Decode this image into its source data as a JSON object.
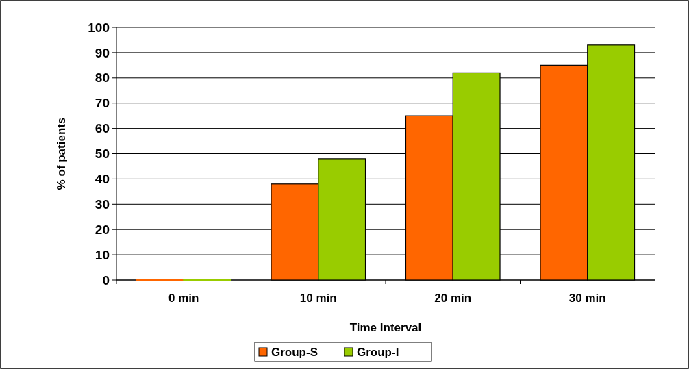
{
  "chart_data": {
    "type": "bar",
    "xlabel": "Time Interval",
    "ylabel": "% of patients",
    "categories": [
      "0 min",
      "10 min",
      "20 min",
      "30 min"
    ],
    "series": [
      {
        "name": "Group-S",
        "color": "#ff6600",
        "values": [
          0,
          38,
          65,
          85
        ]
      },
      {
        "name": "Group-I",
        "color": "#99cc00",
        "values": [
          0,
          48,
          82,
          93
        ]
      }
    ],
    "ylim": [
      0,
      100
    ],
    "yticks": [
      0,
      10,
      20,
      30,
      40,
      50,
      60,
      70,
      80,
      90,
      100
    ],
    "grid": "y",
    "legend": "bottom"
  }
}
